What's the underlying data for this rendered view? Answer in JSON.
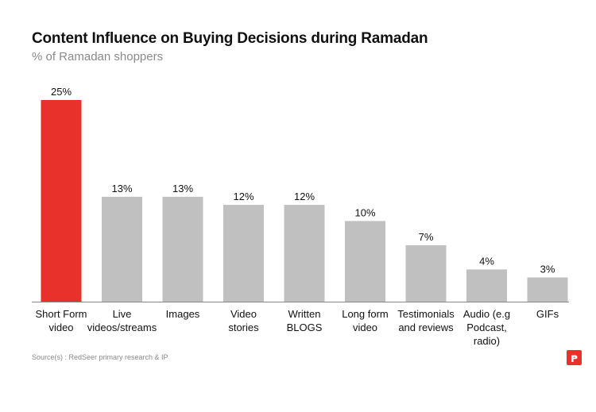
{
  "chart_data": {
    "type": "bar",
    "title": "Content Influence on Buying Decisions during Ramadan",
    "subtitle": "% of Ramadan shoppers",
    "xlabel": "",
    "ylabel": "",
    "ylim": [
      0,
      25
    ],
    "grid": false,
    "legend": "none",
    "unit": "%",
    "categories": [
      [
        "Short Form",
        "video"
      ],
      [
        "Live",
        "videos/streams"
      ],
      [
        "Images"
      ],
      [
        "Video",
        "stories"
      ],
      [
        "Written",
        "BLOGS"
      ],
      [
        "Long form",
        "video"
      ],
      [
        "Testimonials",
        "and reviews"
      ],
      [
        "Audio (e.g",
        "Podcast,",
        "radio)"
      ],
      [
        "GIFs"
      ]
    ],
    "values": [
      25,
      13,
      13,
      12,
      12,
      10,
      7,
      4,
      3
    ],
    "labels": [
      "25%",
      "13%",
      "13%",
      "12%",
      "12%",
      "10%",
      "7%",
      "4%",
      "3%"
    ],
    "colors": {
      "highlight": "#e8312a",
      "default": "#c0c0c0",
      "axis": "#888888"
    },
    "highlight_index": 0
  },
  "footer": {
    "source": "Source(s) : RedSeer primary research & IP",
    "logo_icon": "redseer-logo-icon"
  }
}
